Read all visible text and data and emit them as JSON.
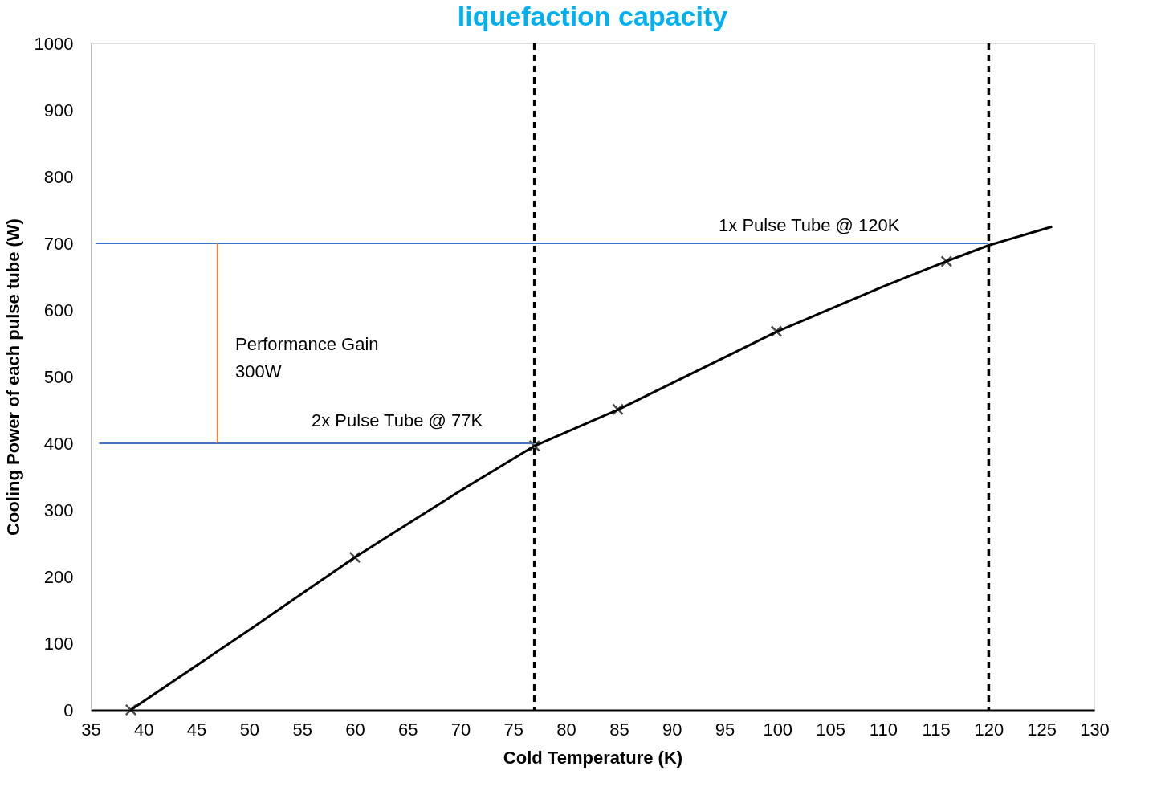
{
  "chart_data": {
    "type": "line",
    "title": "liquefaction capacity",
    "xlabel": "Cold Temperature (K)",
    "ylabel": "Cooling Power of each pulse tube (W)",
    "xlim": [
      35,
      130
    ],
    "xticks": [
      35,
      40,
      45,
      50,
      55,
      60,
      65,
      70,
      75,
      80,
      85,
      90,
      95,
      100,
      105,
      110,
      115,
      120,
      125,
      130
    ],
    "ylim": [
      0,
      1000
    ],
    "yticks": [
      0,
      100,
      200,
      300,
      400,
      500,
      600,
      700,
      800,
      900,
      {
        "value": 1000,
        "label": "1000"
      }
    ],
    "grid": false,
    "series": [
      {
        "color": "#000000",
        "marker": "none",
        "line_style": "solid",
        "x": [
          38.8,
          50,
          60,
          70,
          77,
          85,
          100,
          110,
          116,
          120,
          126
        ],
        "values": [
          0,
          120,
          229,
          329,
          396,
          451,
          568,
          635,
          673,
          697,
          725
        ]
      },
      {
        "type": "scatter",
        "color": "#000000",
        "marker": "cross",
        "x": [
          38.8,
          60,
          77,
          84.9,
          99.9,
          116
        ],
        "values": [
          0,
          229,
          396,
          451,
          568,
          673
        ]
      },
      {
        "type": "line",
        "color": "#4472c4",
        "marker": "none",
        "line_style": "solid",
        "x": [
          120,
          35.5
        ],
        "values": [
          700,
          700
        ]
      },
      {
        "type": "line",
        "color": "#4472c4",
        "marker": "none",
        "line_style": "solid",
        "x": [
          77,
          35.8
        ],
        "values": [
          400,
          400
        ]
      },
      {
        "type": "line",
        "color": "#ed7d31",
        "marker": "none",
        "line_style": "solid",
        "x": [
          47,
          47
        ],
        "values": [
          400,
          700
        ]
      }
    ],
    "ref_lines": [
      {
        "axis": "x",
        "value": 77,
        "color": "#000000",
        "line_style": "dashed"
      },
      {
        "axis": "x",
        "value": 120,
        "color": "#000000",
        "line_style": "dashed"
      }
    ],
    "annotations": [
      {
        "text": "1x Pulse Tube @ 120K",
        "x": 103,
        "y": 700
      },
      {
        "text": "2x Pulse Tube @ 77K",
        "x": 64,
        "y": 400
      },
      "Performance Gain\n300W"
    ]
  }
}
